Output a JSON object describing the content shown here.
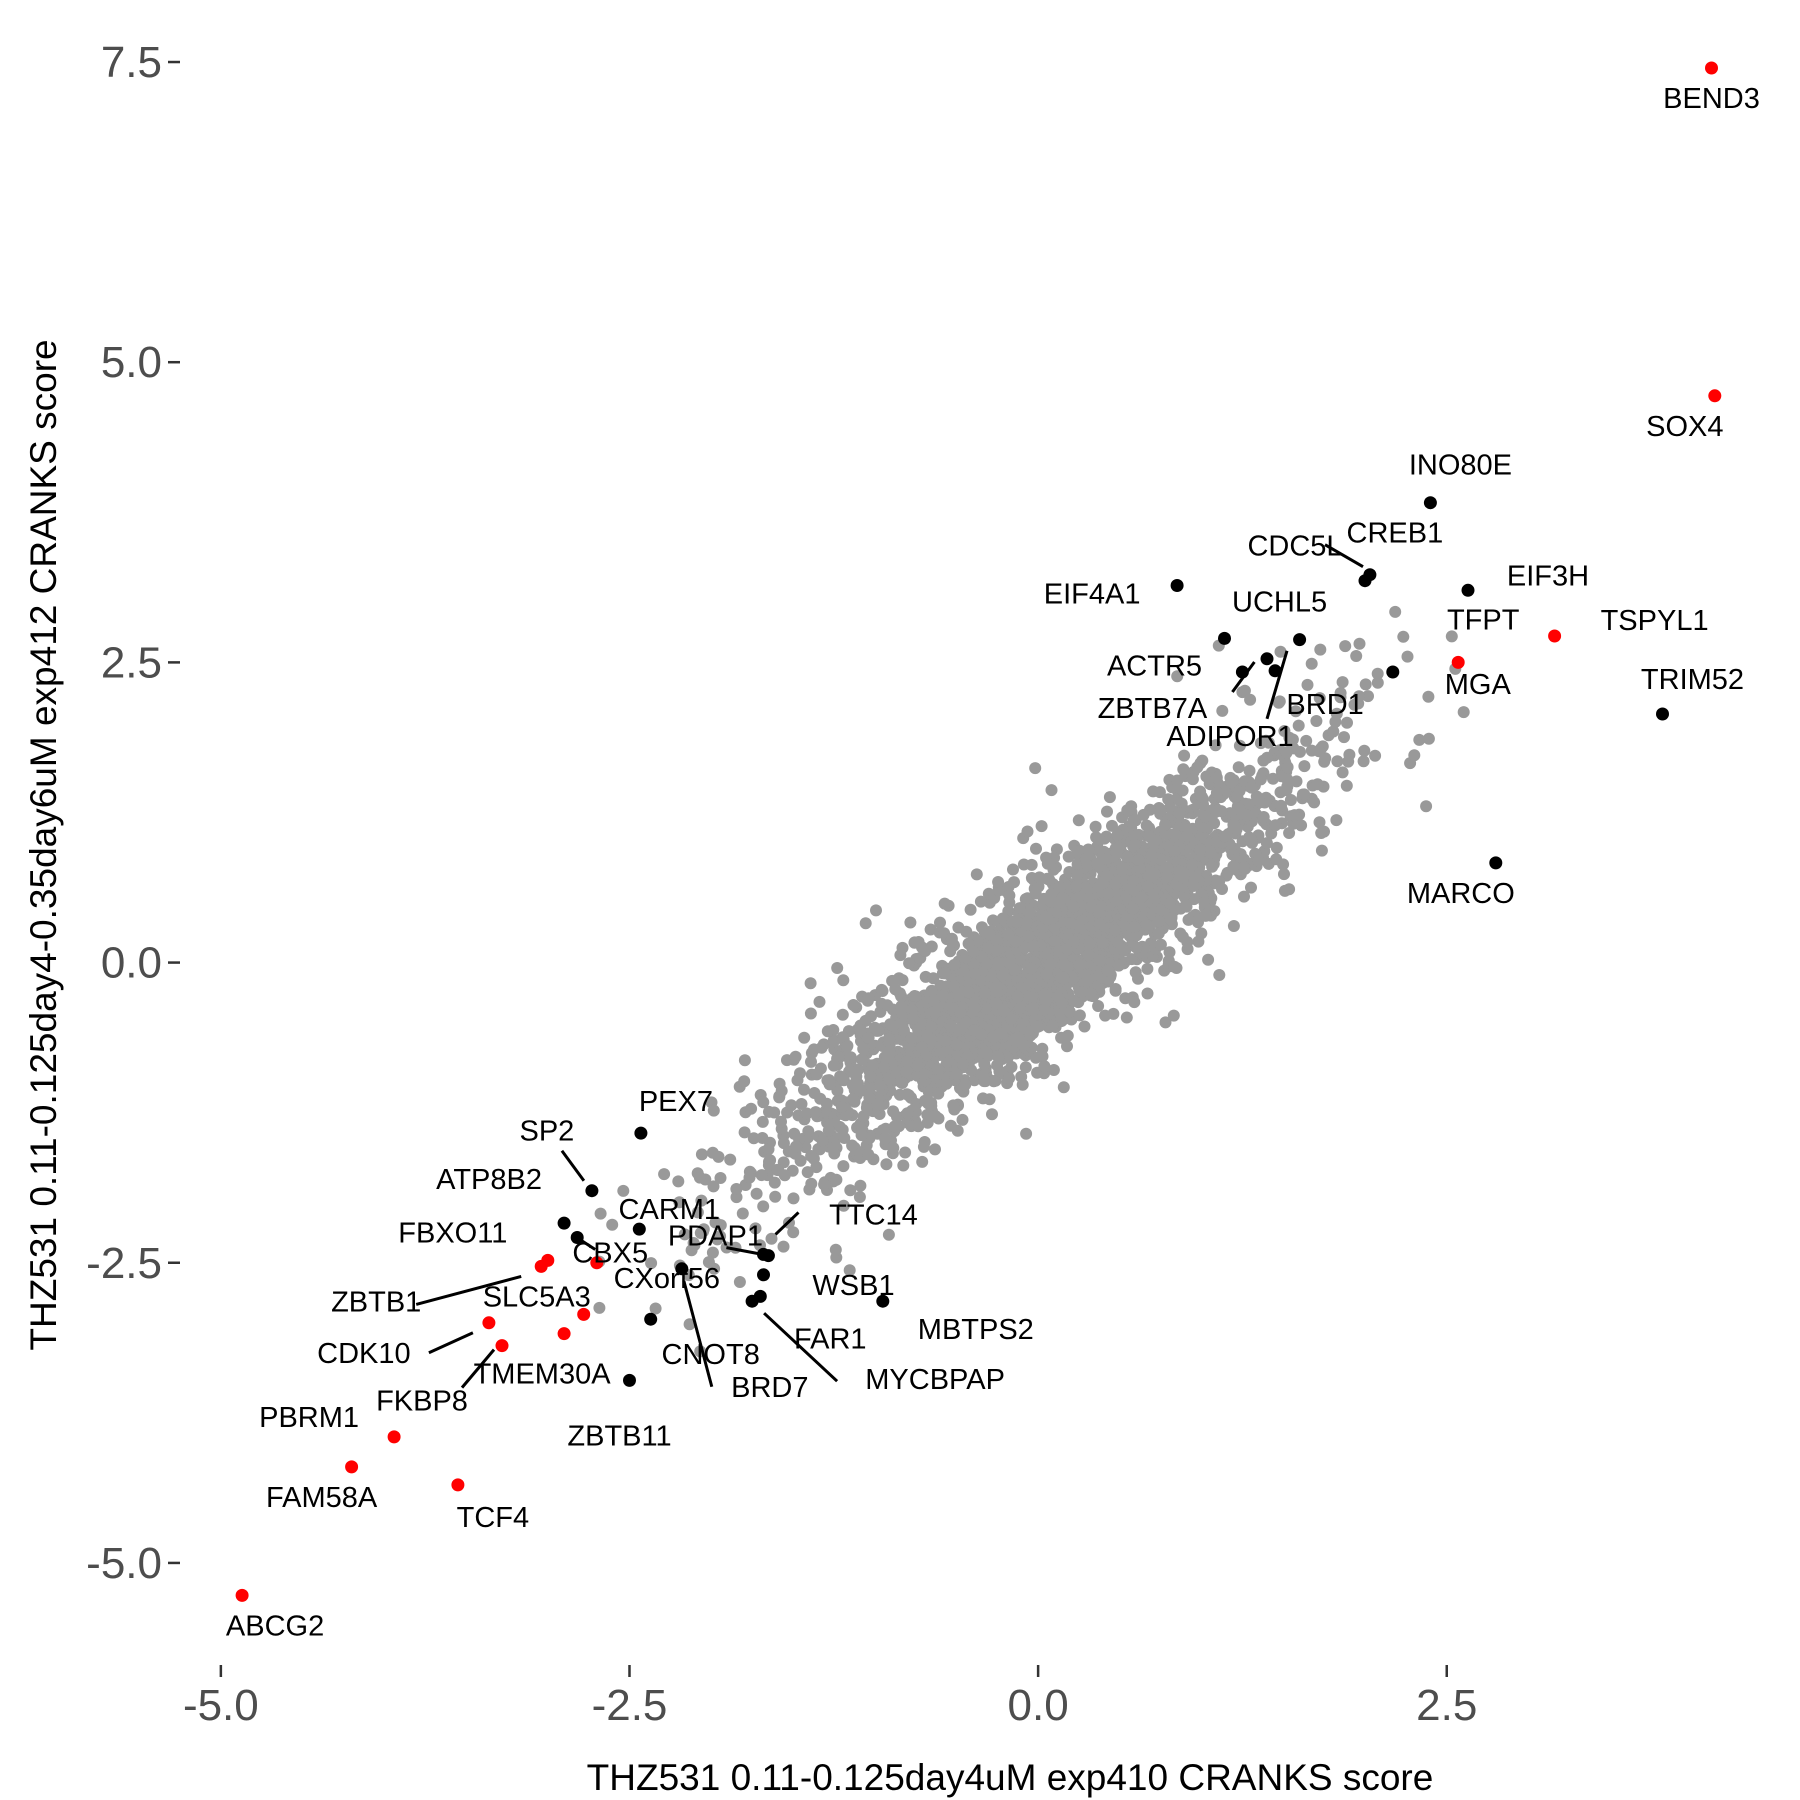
{
  "chart_data": {
    "type": "scatter",
    "title": "",
    "xlabel": "THZ531 0.11-0.125day4uM exp410 CRANKS score",
    "ylabel": "THZ531 0.11-0.125day4-0.35day6uM exp412 CRANKS score",
    "xlim": [
      -5.25,
      4.6
    ],
    "ylim": [
      -5.85,
      7.85
    ],
    "x_ticks": [
      -5.0,
      -2.5,
      0.0,
      2.5
    ],
    "x_tick_labels": [
      "-5.0",
      "-2.5",
      "0.0",
      "2.5"
    ],
    "y_ticks": [
      -5.0,
      -2.5,
      0.0,
      2.5,
      5.0,
      7.5
    ],
    "y_tick_labels": [
      "-5.0",
      "-2.5",
      "0.0",
      "2.5",
      "5.0",
      "7.5"
    ],
    "grid": false,
    "legend": "none",
    "colors": {
      "background": "#999999",
      "highlight": "#ff0000",
      "labeled": "#000000"
    },
    "background_cloud": {
      "description_values": "dense gray point cloud along the diagonal",
      "center": [
        0.0,
        0.0
      ],
      "count": 2600
    },
    "points": [
      {
        "label": "BEND3",
        "x": 4.12,
        "y": 7.45,
        "color": "red"
      },
      {
        "label": "SOX4",
        "x": 4.14,
        "y": 4.72,
        "color": "red"
      },
      {
        "label": "INO80E",
        "x": 2.4,
        "y": 3.83,
        "color": "black"
      },
      {
        "label": "CDC5L",
        "x": 2.0,
        "y": 3.18,
        "color": "black"
      },
      {
        "label": "CREB1",
        "x": 2.03,
        "y": 3.23,
        "color": "black"
      },
      {
        "label": "EIF3H",
        "x": 2.63,
        "y": 3.1,
        "color": "black"
      },
      {
        "label": "EIF4A1",
        "x": 0.85,
        "y": 3.14,
        "color": "black"
      },
      {
        "label": "UCHL5",
        "x": 1.6,
        "y": 2.69,
        "color": "black"
      },
      {
        "label": "TFPT",
        "x": 2.57,
        "y": 2.5,
        "color": "red"
      },
      {
        "label": "TSPYL1",
        "x": 3.16,
        "y": 2.72,
        "color": "red"
      },
      {
        "label": "ACTR5",
        "x": 1.14,
        "y": 2.7,
        "color": "black"
      },
      {
        "label": "TRIM52",
        "x": 3.82,
        "y": 2.07,
        "color": "black"
      },
      {
        "label": "MGA",
        "x": 2.17,
        "y": 2.42,
        "color": "black"
      },
      {
        "label": "BRD1",
        "x": 1.45,
        "y": 2.43,
        "color": "black"
      },
      {
        "label": "ZBTB7A",
        "x": 1.25,
        "y": 2.42,
        "color": "black"
      },
      {
        "label": "ADIPOR1",
        "x": 1.4,
        "y": 2.53,
        "color": "black"
      },
      {
        "label": "MARCO",
        "x": 2.8,
        "y": 0.83,
        "color": "black"
      },
      {
        "label": "PEX7",
        "x": -2.43,
        "y": -1.42,
        "color": "black"
      },
      {
        "label": "SP2",
        "x": -2.73,
        "y": -1.9,
        "color": "black"
      },
      {
        "label": "CARM1",
        "x": -2.44,
        "y": -2.22,
        "color": "black"
      },
      {
        "label": "ATP8B2",
        "x": -2.9,
        "y": -2.17,
        "color": "black"
      },
      {
        "label": "CBX5",
        "x": -2.82,
        "y": -2.29,
        "color": "black"
      },
      {
        "label": "PDAP1",
        "x": -1.65,
        "y": -2.44,
        "color": "black"
      },
      {
        "label": "TTC14",
        "x": -1.68,
        "y": -2.43,
        "color": "black"
      },
      {
        "label": "FBXO11",
        "x": -3.0,
        "y": -2.48,
        "color": "red"
      },
      {
        "label": "ZBTB1",
        "x": -3.04,
        "y": -2.53,
        "color": "red"
      },
      {
        "label": "CXorf56",
        "x": -2.7,
        "y": -2.5,
        "color": "red"
      },
      {
        "label": "WSB1",
        "x": -1.68,
        "y": -2.6,
        "color": "black"
      },
      {
        "label": "SLC5A3",
        "x": -2.78,
        "y": -2.93,
        "color": "red"
      },
      {
        "label": "MBTPS2",
        "x": -0.95,
        "y": -2.82,
        "color": "black"
      },
      {
        "label": "FAR1",
        "x": -1.7,
        "y": -2.78,
        "color": "black"
      },
      {
        "label": "MYCBPAP",
        "x": -1.75,
        "y": -2.82,
        "color": "black"
      },
      {
        "label": "BRD7",
        "x": -2.18,
        "y": -2.55,
        "color": "black"
      },
      {
        "label": "CNOT8",
        "x": -2.37,
        "y": -2.97,
        "color": "black"
      },
      {
        "label": "CDK10",
        "x": -3.36,
        "y": -3.0,
        "color": "red"
      },
      {
        "label": "TMEM30A",
        "x": -2.9,
        "y": -3.09,
        "color": "red"
      },
      {
        "label": "FKBP8",
        "x": -3.28,
        "y": -3.19,
        "color": "red"
      },
      {
        "label": "ZBTB11",
        "x": -2.5,
        "y": -3.48,
        "color": "black"
      },
      {
        "label": "PBRM1",
        "x": -3.94,
        "y": -3.95,
        "color": "red"
      },
      {
        "label": "FAM58A",
        "x": -4.2,
        "y": -4.2,
        "color": "red"
      },
      {
        "label": "TCF4",
        "x": -3.55,
        "y": -4.35,
        "color": "red"
      },
      {
        "label": "ABCG2",
        "x": -4.87,
        "y": -5.27,
        "color": "red"
      }
    ]
  }
}
